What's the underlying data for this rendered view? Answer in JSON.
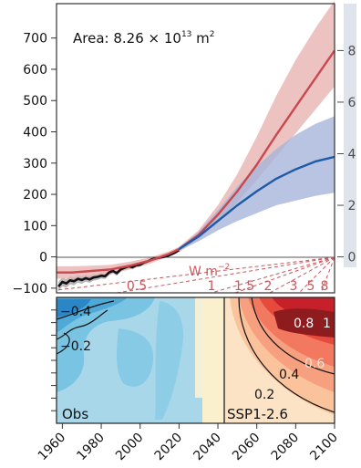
{
  "chart_data": [
    {
      "type": "line",
      "annotation": "Area: 8.26 × 10¹³ m²",
      "annotation_parts": {
        "prefix": "Area: 8.26 × 10",
        "exponent": "13",
        "unit": " m",
        "unit_exp": "2"
      },
      "x_range": [
        1957,
        2100
      ],
      "ylim": [
        -115,
        810
      ],
      "left_ticks": [
        -100,
        0,
        100,
        200,
        300,
        400,
        500,
        600,
        700
      ],
      "right_axis": {
        "ticks": [
          "0",
          "2",
          "4",
          "6",
          "8"
        ],
        "tick_values_left_units": [
          0,
          165,
          330,
          495,
          660
        ],
        "color": "#4b4b4b",
        "band_color": "#dfe3ec"
      },
      "flux_label": {
        "text": "W m",
        "exp": "−2"
      },
      "flux_ticks": [
        "0.5",
        "1",
        "1.5",
        "2",
        "3",
        "5",
        "8"
      ],
      "flux_color": "#c9575c",
      "series": [
        {
          "color": "#111111",
          "band_color": "#a8a8a8",
          "x": [
            1958,
            1960,
            1962,
            1964,
            1966,
            1968,
            1970,
            1972,
            1974,
            1976,
            1978,
            1980,
            1982,
            1984,
            1986,
            1988,
            1990,
            1992,
            1994,
            1996,
            1998,
            2000,
            2002,
            2004,
            2006,
            2008,
            2010,
            2012,
            2014,
            2016,
            2018,
            2020
          ],
          "values": [
            -95,
            -80,
            -85,
            -75,
            -78,
            -70,
            -74,
            -68,
            -72,
            -66,
            -64,
            -60,
            -62,
            -50,
            -45,
            -52,
            -40,
            -35,
            -30,
            -33,
            -27,
            -25,
            -18,
            -14,
            -8,
            -5,
            -2,
            0,
            3,
            8,
            14,
            22
          ],
          "band": [
            15,
            14,
            14,
            13,
            13,
            12,
            12,
            11,
            11,
            10,
            10,
            9,
            9,
            9,
            8,
            8,
            8,
            7,
            7,
            7,
            6,
            6,
            6,
            5,
            5,
            5,
            4,
            4,
            4,
            4,
            4,
            4
          ]
        },
        {
          "color": "#c9474d",
          "band_color": "#e9b4b3",
          "x": [
            1957,
            1965,
            1975,
            1985,
            1995,
            2005,
            2015,
            2020,
            2030,
            2040,
            2050,
            2060,
            2070,
            2080,
            2090,
            2100
          ],
          "values": [
            -50,
            -50,
            -45,
            -40,
            -28,
            -12,
            10,
            25,
            70,
            135,
            210,
            295,
            390,
            480,
            570,
            660
          ],
          "lower": [
            -70,
            -68,
            -62,
            -55,
            -40,
            -22,
            2,
            15,
            55,
            110,
            175,
            245,
            320,
            395,
            470,
            545
          ],
          "upper": [
            -30,
            -30,
            -28,
            -25,
            -15,
            -2,
            18,
            32,
            85,
            165,
            265,
            385,
            515,
            630,
            730,
            820
          ]
        },
        {
          "color": "#1f5aa6",
          "band_color": "#a6b5da",
          "x": [
            2020,
            2030,
            2040,
            2050,
            2060,
            2070,
            2080,
            2090,
            2100
          ],
          "values": [
            25,
            65,
            115,
            165,
            210,
            250,
            280,
            305,
            320
          ],
          "lower": [
            20,
            50,
            85,
            115,
            140,
            165,
            180,
            195,
            205
          ],
          "upper": [
            30,
            80,
            150,
            225,
            290,
            345,
            390,
            425,
            450
          ]
        }
      ]
    },
    {
      "type": "heatmap",
      "panels": [
        {
          "label": "Obs",
          "x_range": [
            1957,
            2020
          ]
        },
        {
          "label": "SSP1-2.6",
          "x_range": [
            2020,
            2100
          ]
        }
      ],
      "obs_contour_labels": [
        "−0.4",
        "−0.2"
      ],
      "ssp_contour_labels": [
        "0.2",
        "0.4",
        "0.6",
        "0.8",
        "1"
      ],
      "x_ticks": [
        1960,
        1980,
        2000,
        2020,
        2040,
        2060,
        2080,
        2100
      ],
      "colors": {
        "obs_base": "#a9d7ea",
        "obs_mid": "#79c4e2",
        "obs_dark": "#4fa9d8",
        "obs_deep": "#2a86c6",
        "obs_warm": "#fbf0cd",
        "ssp": [
          "#fde3c6",
          "#fbc39b",
          "#f7a07f",
          "#f2795f",
          "#e54a3c",
          "#c8202a",
          "#8e1b1d"
        ]
      }
    }
  ]
}
